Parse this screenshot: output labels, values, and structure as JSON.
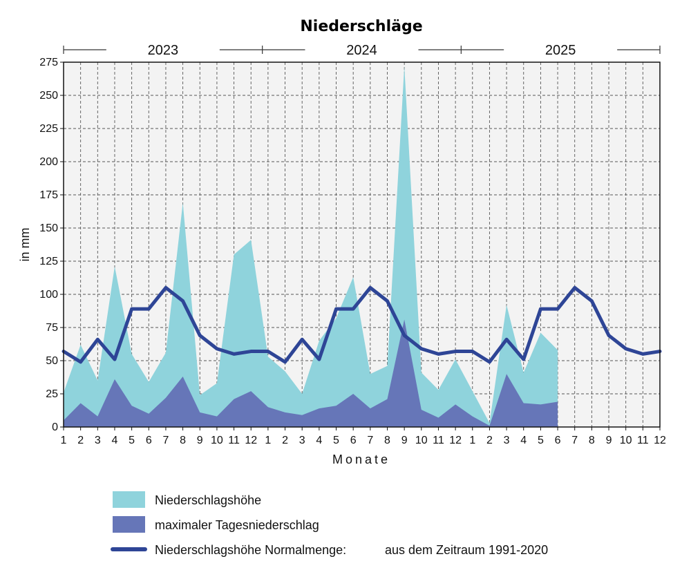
{
  "chart_data": {
    "type": "area",
    "title": "Niederschläge",
    "xlabel": "Monate",
    "ylabel": "in mm",
    "ylim": [
      0,
      275
    ],
    "yticks": [
      0,
      25,
      50,
      75,
      100,
      125,
      150,
      175,
      200,
      225,
      250,
      275
    ],
    "grid": true,
    "legend_position": "bottom",
    "years": [
      "2023",
      "2024",
      "2025"
    ],
    "x": [
      "1",
      "2",
      "3",
      "4",
      "5",
      "6",
      "7",
      "8",
      "9",
      "10",
      "11",
      "12",
      "1",
      "2",
      "3",
      "4",
      "5",
      "6",
      "7",
      "8",
      "9",
      "10",
      "11",
      "12",
      "1",
      "2",
      "3",
      "4",
      "5",
      "6",
      "7",
      "8",
      "9",
      "10",
      "11",
      "12"
    ],
    "series": [
      {
        "name": "Niederschlagshöhe",
        "kind": "area",
        "color": "#8fd3dc",
        "values": [
          26,
          62,
          35,
          121,
          55,
          34,
          56,
          169,
          24,
          33,
          130,
          141,
          53,
          42,
          25,
          65,
          82,
          113,
          40,
          46,
          272,
          41,
          28,
          51,
          27,
          3,
          92,
          41,
          71,
          58,
          null,
          null,
          null,
          null,
          null,
          null
        ]
      },
      {
        "name": "maximaler Tagesniederschlag",
        "kind": "area",
        "color": "#6676b8",
        "values": [
          5,
          18,
          8,
          36,
          16,
          10,
          22,
          38,
          11,
          8,
          21,
          27,
          15,
          11,
          9,
          14,
          16,
          25,
          14,
          21,
          81,
          13,
          7,
          17,
          8,
          1,
          40,
          18,
          17,
          19,
          null,
          null,
          null,
          null,
          null,
          null
        ]
      },
      {
        "name": "Niederschlagshöhe Normalmenge:",
        "note": "aus dem Zeitraum 1991-2020",
        "kind": "line",
        "color": "#2e4596",
        "values": [
          57,
          49,
          66,
          51,
          89,
          89,
          105,
          95,
          69,
          59,
          55,
          57,
          57,
          49,
          66,
          51,
          89,
          89,
          105,
          95,
          69,
          59,
          55,
          57,
          57,
          49,
          66,
          51,
          89,
          89,
          105,
          95,
          69,
          59,
          55,
          57
        ]
      }
    ]
  }
}
